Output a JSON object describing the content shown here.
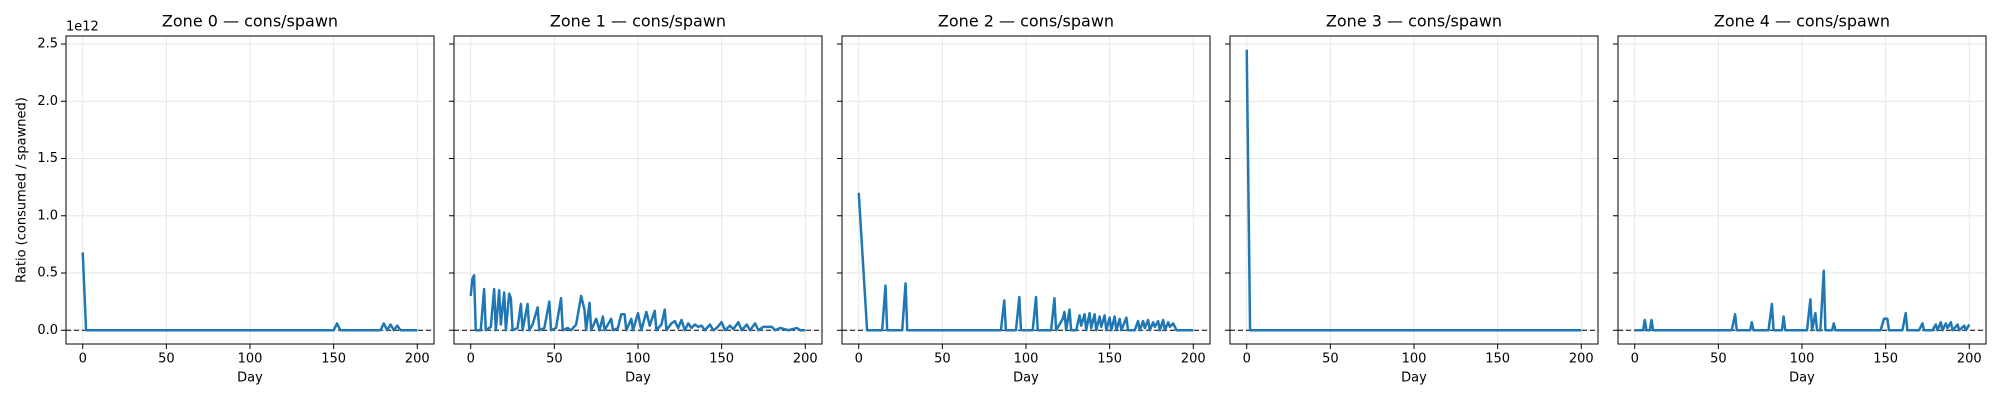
{
  "chart_data": [
    {
      "type": "line",
      "title": "Zone 0 — cons/spawn",
      "xlabel": "Day",
      "ylabel": "Ratio (consumed / spawned)",
      "y_offset_label": "1e12",
      "color": "#1f77b4",
      "x": [
        0,
        2,
        150,
        152,
        154,
        178,
        180,
        182,
        184,
        186,
        188,
        190,
        200
      ],
      "values": [
        0.68,
        0,
        0,
        0.06,
        0,
        0,
        0.06,
        0,
        0.05,
        0,
        0.04,
        0,
        0
      ],
      "xlim": [
        -10,
        210
      ],
      "xticks": [
        0,
        50,
        100,
        150,
        200
      ],
      "ylim": [
        -0.12,
        2.57
      ],
      "yticks": [
        {
          "value": 0,
          "label": "0.0"
        },
        {
          "value": 0.5,
          "label": "0.5"
        },
        {
          "value": 1,
          "label": "1.0"
        },
        {
          "value": 1.5,
          "label": "1.5"
        },
        {
          "value": 2,
          "label": "2.0"
        },
        {
          "value": 2.5,
          "label": "2.5"
        }
      ],
      "grid": true,
      "hline": 0
    },
    {
      "type": "line",
      "title": "Zone 1 — cons/spawn",
      "xlabel": "Day",
      "color": "#1f77b4",
      "x": [
        0,
        1,
        2,
        3,
        6,
        8,
        9,
        12,
        14,
        15,
        17,
        18,
        20,
        21,
        23,
        24,
        25,
        28,
        30,
        31,
        34,
        35,
        37,
        40,
        41,
        44,
        47,
        48,
        51,
        54,
        55,
        58,
        60,
        63,
        66,
        68,
        69,
        71,
        72,
        75,
        77,
        79,
        80,
        84,
        85,
        88,
        90,
        92,
        93,
        96,
        97,
        100,
        102,
        105,
        107,
        110,
        111,
        114,
        116,
        117,
        120,
        122,
        124,
        126,
        128,
        130,
        132,
        134,
        136,
        138,
        140,
        143,
        145,
        147,
        150,
        152,
        155,
        157,
        160,
        162,
        165,
        167,
        170,
        172,
        175,
        180,
        182,
        185,
        190,
        195,
        197,
        200
      ],
      "values": [
        0.3,
        0.45,
        0.48,
        0,
        0,
        0.36,
        0,
        0.03,
        0.36,
        0,
        0.35,
        0.05,
        0.33,
        0,
        0.32,
        0.28,
        0,
        0.02,
        0.23,
        0,
        0.23,
        0,
        0.05,
        0.2,
        0,
        0.02,
        0.25,
        0,
        0.02,
        0.28,
        0,
        0.02,
        0,
        0.05,
        0.3,
        0.18,
        0,
        0.24,
        0,
        0.1,
        0,
        0.12,
        0,
        0.1,
        0,
        0.02,
        0.14,
        0.14,
        0,
        0.1,
        0,
        0.15,
        0,
        0.16,
        0.04,
        0.17,
        0,
        0.05,
        0.18,
        0,
        0.06,
        0.08,
        0.02,
        0.09,
        0,
        0.06,
        0.02,
        0.05,
        0.03,
        0.04,
        0,
        0.05,
        0,
        0.02,
        0.07,
        0,
        0.04,
        0.01,
        0.07,
        0,
        0.05,
        0,
        0.06,
        0,
        0.03,
        0.03,
        0,
        0.02,
        0,
        0.02,
        0,
        0
      ],
      "xlim": [
        -10,
        210
      ],
      "xticks": [
        0,
        50,
        100,
        150,
        200
      ],
      "ylim": [
        -0.12,
        2.57
      ],
      "yticks": [
        0,
        0.5,
        1,
        1.5,
        2,
        2.5
      ],
      "grid": true,
      "hline": 0
    },
    {
      "type": "line",
      "title": "Zone 2 — cons/spawn",
      "xlabel": "Day",
      "color": "#1f77b4",
      "x": [
        0,
        5,
        14,
        16,
        17,
        26,
        28,
        29,
        85,
        87,
        88,
        94,
        96,
        97,
        104,
        106,
        107,
        115,
        117,
        118,
        122,
        123,
        124,
        126,
        127,
        130,
        132,
        133,
        135,
        136,
        138,
        139,
        141,
        142,
        144,
        145,
        147,
        148,
        150,
        151,
        153,
        154,
        156,
        157,
        160,
        161,
        165,
        167,
        168,
        170,
        171,
        173,
        174,
        176,
        177,
        179,
        180,
        182,
        183,
        185,
        186,
        188,
        190,
        200
      ],
      "values": [
        1.2,
        0,
        0,
        0.39,
        0,
        0,
        0.41,
        0,
        0,
        0.26,
        0,
        0,
        0.29,
        0,
        0,
        0.29,
        0,
        0,
        0.28,
        0,
        0.1,
        0.16,
        0,
        0.18,
        0,
        0,
        0.13,
        0.04,
        0.14,
        0,
        0.15,
        0.02,
        0.14,
        0,
        0.12,
        0.03,
        0.13,
        0,
        0.11,
        0,
        0.12,
        0,
        0.1,
        0,
        0.11,
        0,
        0,
        0.08,
        0,
        0.08,
        0.02,
        0.09,
        0,
        0.07,
        0.03,
        0.08,
        0,
        0.09,
        0,
        0.07,
        0.03,
        0.06,
        0,
        0
      ],
      "xlim": [
        -10,
        210
      ],
      "xticks": [
        0,
        50,
        100,
        150,
        200
      ],
      "ylim": [
        -0.12,
        2.57
      ],
      "yticks": [
        0,
        0.5,
        1,
        1.5,
        2,
        2.5
      ],
      "grid": true,
      "hline": 0
    },
    {
      "type": "line",
      "title": "Zone 3 — cons/spawn",
      "xlabel": "Day",
      "color": "#1f77b4",
      "x": [
        0,
        2,
        200
      ],
      "values": [
        2.45,
        0,
        0
      ],
      "xlim": [
        -10,
        210
      ],
      "xticks": [
        0,
        50,
        100,
        150,
        200
      ],
      "ylim": [
        -0.12,
        2.57
      ],
      "yticks": [
        0,
        0.5,
        1,
        1.5,
        2,
        2.5
      ],
      "grid": true,
      "hline": 0
    },
    {
      "type": "line",
      "title": "Zone 4 — cons/spawn",
      "xlabel": "Day",
      "color": "#1f77b4",
      "x": [
        0,
        5,
        6,
        7,
        9,
        10,
        11,
        58,
        60,
        61,
        69,
        70,
        71,
        80,
        82,
        83,
        88,
        89,
        90,
        103,
        105,
        106,
        108,
        109,
        111,
        113,
        114,
        118,
        119,
        120,
        147,
        149,
        151,
        152,
        160,
        162,
        163,
        170,
        172,
        173,
        178,
        180,
        181,
        183,
        184,
        186,
        187,
        189,
        190,
        193,
        194,
        197,
        198,
        200
      ],
      "values": [
        0,
        0,
        0.09,
        0,
        0,
        0.09,
        0,
        0,
        0.14,
        0,
        0,
        0.07,
        0,
        0,
        0.23,
        0,
        0,
        0.12,
        0,
        0,
        0.27,
        0,
        0.15,
        0,
        0,
        0.52,
        0,
        0,
        0.06,
        0,
        0,
        0.1,
        0.1,
        0,
        0,
        0.15,
        0,
        0,
        0.06,
        0,
        0,
        0.05,
        0,
        0.07,
        0,
        0.06,
        0.02,
        0.07,
        0,
        0.05,
        0,
        0.04,
        0,
        0.05
      ],
      "xlim": [
        -10,
        210
      ],
      "xticks": [
        0,
        50,
        100,
        150,
        200
      ],
      "ylim": [
        -0.12,
        2.57
      ],
      "yticks": [
        0,
        0.5,
        1,
        1.5,
        2,
        2.5
      ],
      "grid": true,
      "hline": 0
    }
  ]
}
